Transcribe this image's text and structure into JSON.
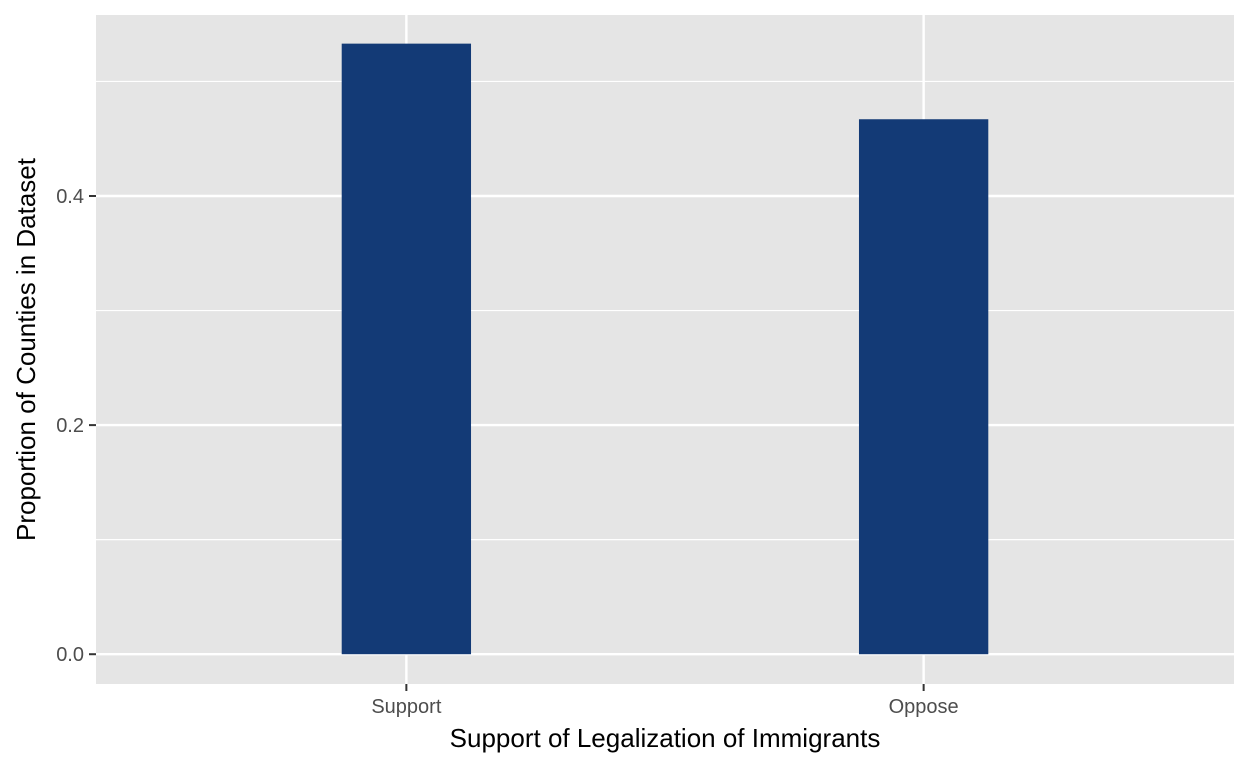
{
  "chart_data": {
    "type": "bar",
    "title": "",
    "xlabel": "Support of Legalization of Immigrants",
    "ylabel": "Proportion of Counties in Dataset",
    "categories": [
      "Support",
      "Oppose"
    ],
    "values": [
      0.533,
      0.467
    ],
    "ylim": [
      -0.026,
      0.558
    ],
    "y_ticks": [
      0.0,
      0.2,
      0.4
    ],
    "y_tick_labels": [
      "0.0",
      "0.2",
      "0.4"
    ],
    "grid": true,
    "legend": "none",
    "colors": {
      "bar": "#133a76",
      "panel_background": "#e5e5e5",
      "grid_line": "#ffffff",
      "tick_text": "#4d4d4d",
      "axis_title_text": "#000000"
    }
  }
}
